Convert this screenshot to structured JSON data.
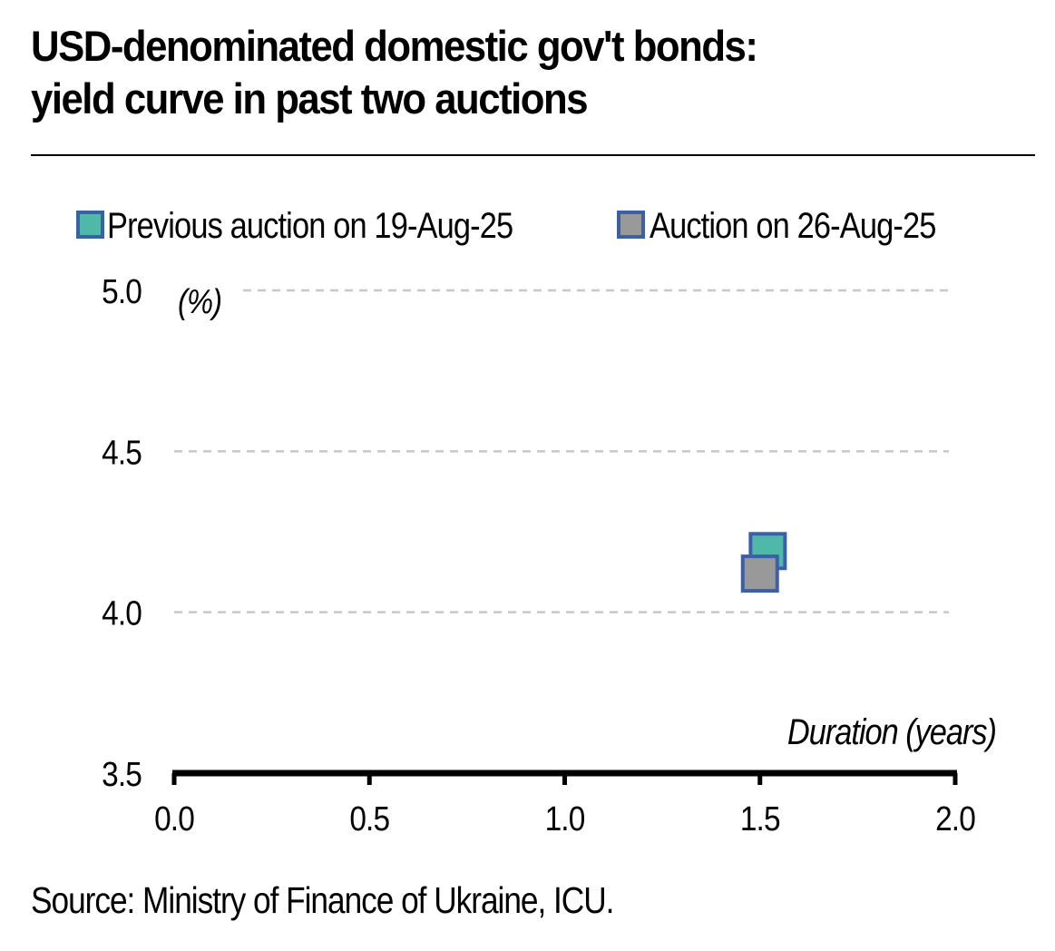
{
  "title_line1": "USD-denominated domestic gov't bonds:",
  "title_line2": "yield curve in past two auctions",
  "source": "Source: Ministry of Finance of Ukraine, ICU.",
  "chart_data": {
    "type": "scatter",
    "title": "USD-denominated domestic gov't bonds: yield curve in past two auctions",
    "xlabel": "Duration (years)",
    "ylabel": "(%)",
    "xlim": [
      0.0,
      2.0
    ],
    "ylim": [
      3.5,
      5.0
    ],
    "x_ticks": [
      "0.0",
      "0.5",
      "1.0",
      "1.5",
      "2.0"
    ],
    "y_ticks": [
      "5.0",
      "4.5",
      "4.0",
      "3.5"
    ],
    "grid": "horizontal dashed",
    "legend_position": "top",
    "series": [
      {
        "name": "Previous auction on 19-Aug-25",
        "color": "#4fb8a8",
        "border": "#3c5fa8",
        "points": [
          {
            "x": 1.52,
            "y": 4.19
          }
        ]
      },
      {
        "name": "Auction on 26-Aug-25",
        "color": "#999999",
        "border": "#3c5fa8",
        "points": [
          {
            "x": 1.5,
            "y": 4.12
          }
        ]
      }
    ]
  }
}
